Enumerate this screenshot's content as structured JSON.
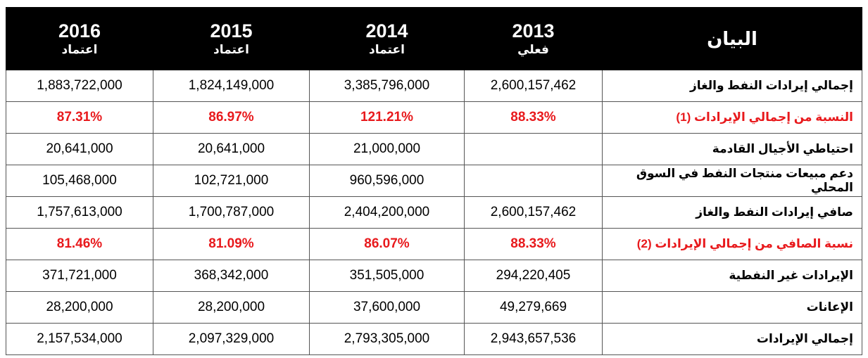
{
  "table": {
    "columns": [
      {
        "label": "البيان"
      },
      {
        "year": "2013",
        "sub": "فعلي"
      },
      {
        "year": "2014",
        "sub": "اعتماد"
      },
      {
        "year": "2015",
        "sub": "اعتماد"
      },
      {
        "year": "2016",
        "sub": "اعتماد"
      }
    ],
    "rows": [
      {
        "cells": [
          "إجمالي إيرادات النفط والغاز",
          "2,600,157,462",
          "3,385,796,000",
          "1,824,149,000",
          "1,883,722,000"
        ],
        "highlight": false
      },
      {
        "cells": [
          "النسبة من إجمالي الإيرادات (1)",
          "88.33%",
          "121.21%",
          "86.97%",
          "87.31%"
        ],
        "highlight": true
      },
      {
        "cells": [
          "احتياطي الأجيال القادمة",
          null,
          "21,000,000",
          "20,641,000",
          "20,641,000"
        ],
        "highlight": false
      },
      {
        "cells": [
          "دعم مبيعات منتجات النفط في السوق المحلي",
          null,
          "960,596,000",
          "102,721,000",
          "105,468,000"
        ],
        "highlight": false
      },
      {
        "cells": [
          "صافي إيرادات النفط والغاز",
          "2,600,157,462",
          "2,404,200,000",
          "1,700,787,000",
          "1,757,613,000"
        ],
        "highlight": false
      },
      {
        "cells": [
          "نسبة الصافي من إجمالي الإيرادات (2)",
          "88.33%",
          "86.07%",
          "81.09%",
          "81.46%"
        ],
        "highlight": true
      },
      {
        "cells": [
          "الإيرادات غير النفطية",
          "294,220,405",
          "351,505,000",
          "368,342,000",
          "371,721,000"
        ],
        "highlight": false
      },
      {
        "cells": [
          "الإعانات",
          "49,279,669",
          "37,600,000",
          "28,200,000",
          "28,200,000"
        ],
        "highlight": false
      },
      {
        "cells": [
          "إجمالي الإيرادات",
          "2,943,657,536",
          "2,793,305,000",
          "2,097,329,000",
          "2,157,534,000"
        ],
        "highlight": false
      }
    ]
  }
}
